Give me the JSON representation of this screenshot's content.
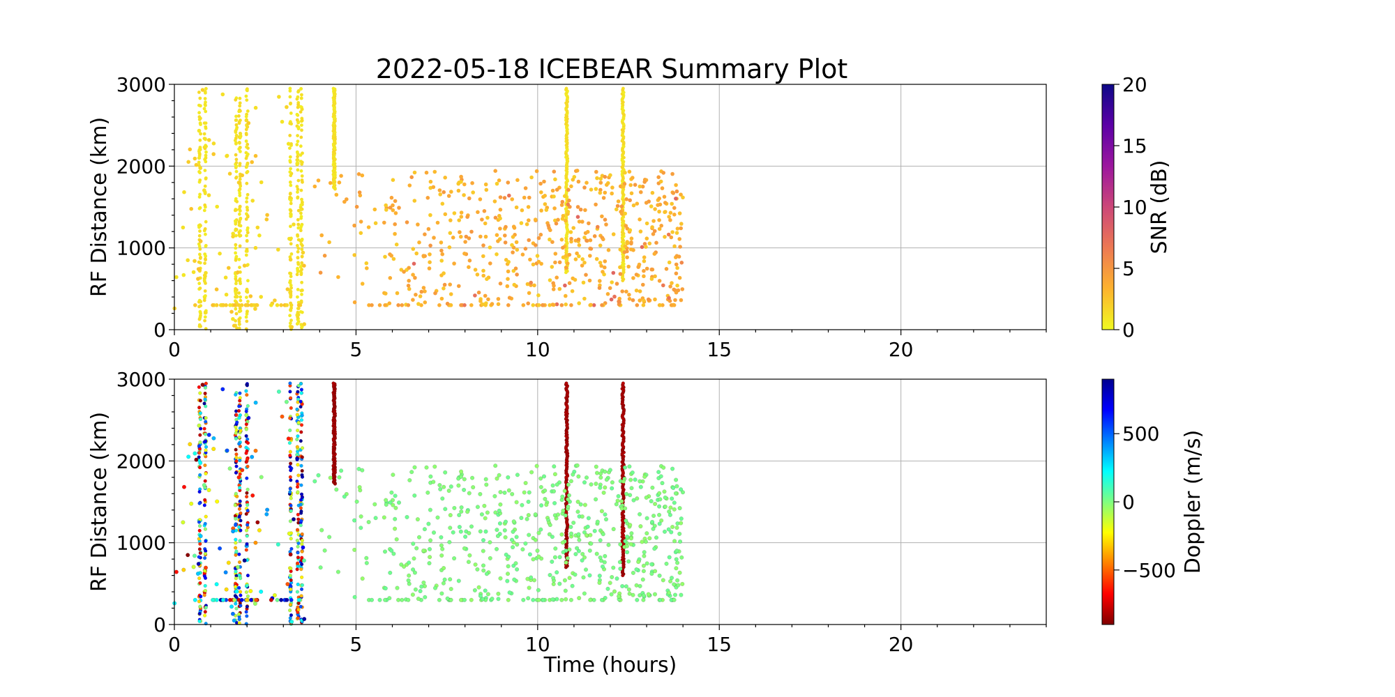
{
  "chart_data": {
    "type": "scatter",
    "title": "2022-05-18 ICEBEAR Summary Plot",
    "xlabel": "Time (hours)",
    "xlim": [
      0,
      24
    ],
    "xticks": [
      0,
      5,
      10,
      15,
      20
    ],
    "grid": true,
    "panels": [
      {
        "ylabel": "RF Distance (km)",
        "ylim": [
          0,
          3000
        ],
        "yticks": [
          0,
          1000,
          2000,
          3000
        ],
        "color_variable": "SNR",
        "colorbar": {
          "label": "SNR (dB)",
          "range": [
            0,
            20
          ],
          "ticks": [
            0,
            5,
            10,
            15,
            20
          ],
          "tick_labels": [
            "0",
            "5",
            "10",
            "15",
            "20"
          ],
          "colormap": "plasma_r",
          "colors": [
            "#f0f921",
            "#fdb32f",
            "#ed7953",
            "#cc4778",
            "#9c179e",
            "#5c01a6",
            "#0d0887"
          ]
        },
        "show_xlabel": false
      },
      {
        "ylabel": "RF Distance (km)",
        "ylim": [
          0,
          3000
        ],
        "yticks": [
          0,
          1000,
          2000,
          3000
        ],
        "color_variable": "Doppler",
        "colorbar": {
          "label": "Doppler (m/s)",
          "range": [
            -900,
            900
          ],
          "ticks": [
            -500,
            0,
            500
          ],
          "tick_labels": [
            "−500",
            "0",
            "500"
          ],
          "colormap": "jet_r",
          "colors": [
            "#800000",
            "#ff0000",
            "#ff8000",
            "#ffff00",
            "#80ff80",
            "#00ffff",
            "#0080ff",
            "#0000ff",
            "#00008f"
          ]
        },
        "show_xlabel": true
      }
    ],
    "vertical_streaks": [
      {
        "time": 0.7,
        "y_min": 0,
        "y_max": 2950,
        "snr": 1,
        "doppler": "mixed"
      },
      {
        "time": 0.85,
        "y_min": 0,
        "y_max": 2950,
        "snr": 1,
        "doppler": "mixed"
      },
      {
        "time": 1.7,
        "y_min": 0,
        "y_max": 2950,
        "snr": 1,
        "doppler": "mixed"
      },
      {
        "time": 1.8,
        "y_min": 0,
        "y_max": 2950,
        "snr": 1,
        "doppler": "mixed"
      },
      {
        "time": 2.0,
        "y_min": 0,
        "y_max": 2950,
        "snr": 1,
        "doppler": "mixed"
      },
      {
        "time": 3.2,
        "y_min": 0,
        "y_max": 2950,
        "snr": 1,
        "doppler": "mixed"
      },
      {
        "time": 3.4,
        "y_min": 0,
        "y_max": 2950,
        "snr": 1,
        "doppler": "mixed"
      },
      {
        "time": 3.5,
        "y_min": 0,
        "y_max": 2950,
        "snr": 1,
        "doppler": "mixed"
      },
      {
        "time": 4.4,
        "y_min": 1720,
        "y_max": 2950,
        "snr": 1,
        "doppler": -850
      },
      {
        "time": 10.8,
        "y_min": 700,
        "y_max": 2950,
        "snr": 1,
        "doppler": -850
      },
      {
        "time": 12.35,
        "y_min": 600,
        "y_max": 2950,
        "snr": 1,
        "doppler": -850
      }
    ],
    "scatter_cluster": {
      "time_range": [
        3.5,
        14.0
      ],
      "distance_range": [
        300,
        1900
      ],
      "snr_typical": [
        2,
        5
      ],
      "doppler_typical": 0
    }
  }
}
